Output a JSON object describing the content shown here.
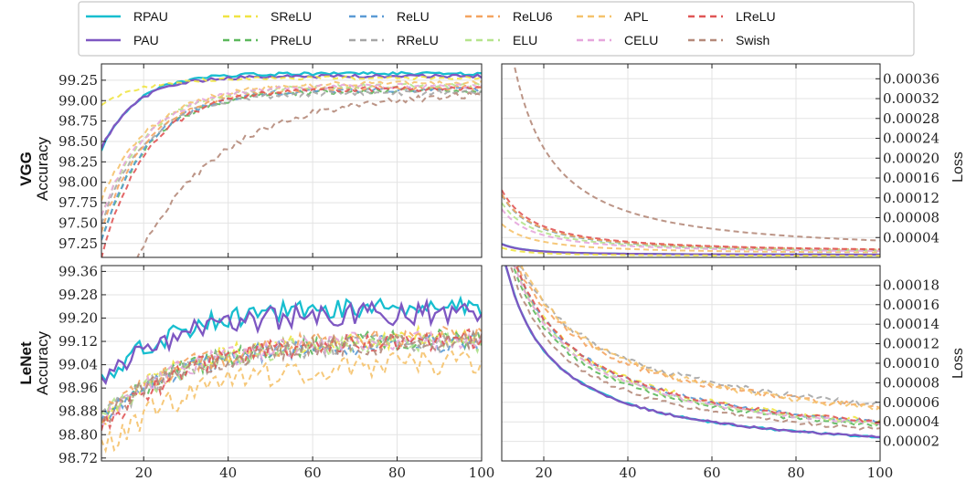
{
  "legend": {
    "entries": [
      {
        "name": "RPAU",
        "color": "#17becf",
        "dash": false
      },
      {
        "name": "PAU",
        "color": "#7e57c2",
        "dash": false
      },
      {
        "name": "SReLU",
        "color": "#f0e442",
        "dash": true
      },
      {
        "name": "PReLU",
        "color": "#5cb85c",
        "dash": true
      },
      {
        "name": "ReLU",
        "color": "#5b9bd5",
        "dash": true
      },
      {
        "name": "RReLU",
        "color": "#a6a6a6",
        "dash": true
      },
      {
        "name": "ReLU6",
        "color": "#f4a460",
        "dash": true
      },
      {
        "name": "ELU",
        "color": "#b5e48c",
        "dash": true
      },
      {
        "name": "APL",
        "color": "#f5c26b",
        "dash": true
      },
      {
        "name": "CELU",
        "color": "#e6a6dc",
        "dash": true
      },
      {
        "name": "LReLU",
        "color": "#e05555",
        "dash": true
      },
      {
        "name": "Swish",
        "color": "#b58a7a",
        "dash": true
      }
    ]
  },
  "rows": [
    {
      "model": "VGG",
      "metric": "Accuracy",
      "loss_label": "Loss"
    },
    {
      "model": "LeNet",
      "metric": "Accuracy",
      "loss_label": "Loss"
    }
  ],
  "chart_data": [
    {
      "type": "line",
      "model": "VGG",
      "metric": "Accuracy",
      "xlim": [
        10,
        100
      ],
      "ylim": [
        97.08,
        99.45
      ],
      "x_ticks": [
        20,
        40,
        60,
        80,
        100
      ],
      "y_ticks": [
        "97.25",
        "97.50",
        "97.75",
        "98.00",
        "98.25",
        "98.50",
        "98.75",
        "99.00",
        "99.25"
      ],
      "grid": true,
      "series": [
        {
          "name": "RPAU",
          "start": 98.4,
          "end": 99.33,
          "rate": 0.12,
          "noise": 0.02
        },
        {
          "name": "PAU",
          "start": 98.42,
          "end": 99.3,
          "rate": 0.12,
          "noise": 0.02
        },
        {
          "name": "SReLU",
          "start": 98.95,
          "end": 99.28,
          "rate": 0.1,
          "noise": 0.02
        },
        {
          "name": "PReLU",
          "start": 97.3,
          "end": 99.12,
          "rate": 0.09,
          "noise": 0.03
        },
        {
          "name": "ReLU",
          "start": 97.3,
          "end": 99.14,
          "rate": 0.09,
          "noise": 0.03
        },
        {
          "name": "RReLU",
          "start": 97.5,
          "end": 99.1,
          "rate": 0.09,
          "noise": 0.03
        },
        {
          "name": "ReLU6",
          "start": 97.4,
          "end": 99.16,
          "rate": 0.09,
          "noise": 0.03
        },
        {
          "name": "ELU",
          "start": 97.6,
          "end": 99.18,
          "rate": 0.09,
          "noise": 0.03
        },
        {
          "name": "APL",
          "start": 97.8,
          "end": 99.22,
          "rate": 0.08,
          "noise": 0.03
        },
        {
          "name": "CELU",
          "start": 97.6,
          "end": 99.18,
          "rate": 0.09,
          "noise": 0.03
        },
        {
          "name": "LReLU",
          "start": 97.1,
          "end": 99.15,
          "rate": 0.09,
          "noise": 0.03
        },
        {
          "name": "Swish",
          "start": 96.0,
          "end": 99.1,
          "rate": 0.05,
          "noise": 0.04
        }
      ]
    },
    {
      "type": "line",
      "model": "VGG",
      "metric": "Loss",
      "xlim": [
        10,
        100
      ],
      "ylim": [
        0.0,
        0.00039
      ],
      "x_ticks": [
        20,
        40,
        60,
        80,
        100
      ],
      "y_ticks": [
        "0.00004",
        "0.00008",
        "0.00012",
        "0.00016",
        "0.00020",
        "0.00024",
        "0.00028",
        "0.00032",
        "0.00036"
      ],
      "grid": true,
      "series": [
        {
          "name": "RPAU",
          "k": 0.00099,
          "p": 1.65,
          "floor": 5e-06
        },
        {
          "name": "PAU",
          "k": 0.00097,
          "p": 1.65,
          "floor": 5e-06
        },
        {
          "name": "SReLU",
          "k": 0.00065,
          "p": 1.6,
          "floor": 3e-06
        },
        {
          "name": "PReLU",
          "k": 0.0021,
          "p": 1.25,
          "floor": 8e-06
        },
        {
          "name": "ReLU",
          "k": 0.0021,
          "p": 1.25,
          "floor": 8e-06
        },
        {
          "name": "RReLU",
          "k": 0.0021,
          "p": 1.25,
          "floor": 9e-06
        },
        {
          "name": "ReLU6",
          "k": 0.0021,
          "p": 1.25,
          "floor": 9e-06
        },
        {
          "name": "ELU",
          "k": 0.0019,
          "p": 1.27,
          "floor": 8e-06
        },
        {
          "name": "APL",
          "k": 0.0012,
          "p": 1.3,
          "floor": 7e-06
        },
        {
          "name": "CELU",
          "k": 0.0017,
          "p": 1.28,
          "floor": 8e-06
        },
        {
          "name": "LReLU",
          "k": 0.0022,
          "p": 1.24,
          "floor": 9e-06
        },
        {
          "name": "Swish",
          "k": 0.012,
          "p": 1.35,
          "floor": 1e-05
        }
      ]
    },
    {
      "type": "line",
      "model": "LeNet",
      "metric": "Accuracy",
      "xlim": [
        10,
        100
      ],
      "ylim": [
        98.71,
        99.38
      ],
      "x_ticks": [
        20,
        40,
        60,
        80,
        100
      ],
      "y_ticks": [
        "98.72",
        "98.80",
        "98.88",
        "98.96",
        "99.04",
        "99.12",
        "99.20",
        "99.28",
        "99.36"
      ],
      "grid": true,
      "series": [
        {
          "name": "RPAU",
          "start": 98.98,
          "end": 99.24,
          "rate": 0.06,
          "noise": 0.035
        },
        {
          "name": "PAU",
          "start": 98.98,
          "end": 99.22,
          "rate": 0.06,
          "noise": 0.04
        },
        {
          "name": "SReLU",
          "start": 98.85,
          "end": 99.14,
          "rate": 0.05,
          "noise": 0.035
        },
        {
          "name": "PReLU",
          "start": 98.85,
          "end": 99.13,
          "rate": 0.05,
          "noise": 0.035
        },
        {
          "name": "ReLU",
          "start": 98.85,
          "end": 99.12,
          "rate": 0.05,
          "noise": 0.035
        },
        {
          "name": "RReLU",
          "start": 98.85,
          "end": 99.12,
          "rate": 0.05,
          "noise": 0.035
        },
        {
          "name": "ReLU6",
          "start": 98.85,
          "end": 99.14,
          "rate": 0.05,
          "noise": 0.035
        },
        {
          "name": "ELU",
          "start": 98.85,
          "end": 99.12,
          "rate": 0.05,
          "noise": 0.035
        },
        {
          "name": "APL",
          "start": 98.74,
          "end": 99.05,
          "rate": 0.05,
          "noise": 0.045
        },
        {
          "name": "CELU",
          "start": 98.85,
          "end": 99.13,
          "rate": 0.05,
          "noise": 0.035
        },
        {
          "name": "LReLU",
          "start": 98.82,
          "end": 99.13,
          "rate": 0.05,
          "noise": 0.035
        },
        {
          "name": "Swish",
          "start": 98.85,
          "end": 99.12,
          "rate": 0.05,
          "noise": 0.035
        }
      ]
    },
    {
      "type": "line",
      "model": "LeNet",
      "metric": "Loss",
      "xlim": [
        10,
        100
      ],
      "ylim": [
        0.0,
        0.0002
      ],
      "x_ticks": [
        20,
        40,
        60,
        80,
        100
      ],
      "y_ticks": [
        "0.00002",
        "0.00004",
        "0.00006",
        "0.00008",
        "0.00010",
        "0.00012",
        "0.00014",
        "0.00016",
        "0.00018"
      ],
      "grid": true,
      "series": [
        {
          "name": "RPAU",
          "k": 0.00195,
          "p": 0.95,
          "floor": 0.0,
          "noise": 1e-06
        },
        {
          "name": "PAU",
          "k": 0.00195,
          "p": 0.95,
          "floor": 0.0,
          "noise": 1e-06
        },
        {
          "name": "SReLU",
          "k": 0.0016,
          "p": 0.8,
          "floor": 0.0,
          "noise": 3e-06
        },
        {
          "name": "PReLU",
          "k": 0.0016,
          "p": 0.82,
          "floor": 0.0,
          "noise": 2e-06
        },
        {
          "name": "ReLU",
          "k": 0.0016,
          "p": 0.8,
          "floor": 0.0,
          "noise": 2e-06
        },
        {
          "name": "RReLU",
          "k": 0.0011,
          "p": 0.64,
          "floor": 0.0,
          "noise": 3e-06
        },
        {
          "name": "ReLU6",
          "k": 0.0011,
          "p": 0.65,
          "floor": 0.0,
          "noise": 3e-06
        },
        {
          "name": "ELU",
          "k": 0.0016,
          "p": 0.81,
          "floor": 0.0,
          "noise": 2e-06
        },
        {
          "name": "APL",
          "k": 0.00125,
          "p": 0.68,
          "floor": 0.0,
          "noise": 3e-06
        },
        {
          "name": "CELU",
          "k": 0.0016,
          "p": 0.81,
          "floor": 0.0,
          "noise": 2e-06
        },
        {
          "name": "LReLU",
          "k": 0.0016,
          "p": 0.8,
          "floor": 0.0,
          "noise": 2e-06
        },
        {
          "name": "Swish",
          "k": 0.0017,
          "p": 0.86,
          "floor": 0.0,
          "noise": 2e-06
        }
      ]
    }
  ]
}
